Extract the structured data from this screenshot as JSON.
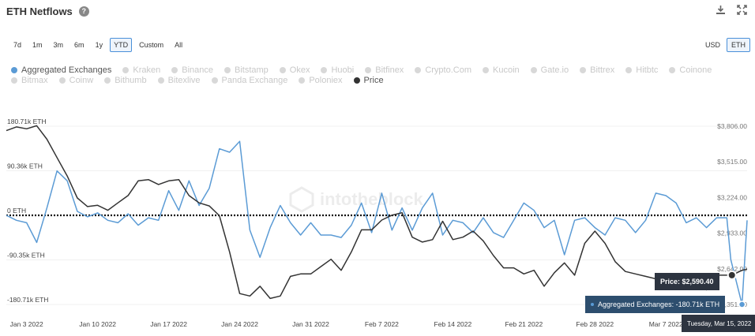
{
  "header": {
    "title": "ETH Netflows",
    "help_icon": "?"
  },
  "toolbar": {
    "icons": [
      "download-icon",
      "expand-icon"
    ],
    "ranges": [
      "7d",
      "1m",
      "3m",
      "6m",
      "1y",
      "YTD",
      "Custom",
      "All"
    ],
    "active_range": "YTD",
    "currencies": [
      "USD",
      "ETH"
    ],
    "active_currency": "ETH"
  },
  "legend": {
    "items": [
      {
        "label": "Aggregated Exchanges",
        "active": true,
        "color": "#5b9bd5"
      },
      {
        "label": "Kraken",
        "active": false
      },
      {
        "label": "Binance",
        "active": false
      },
      {
        "label": "Bitstamp",
        "active": false
      },
      {
        "label": "Okex",
        "active": false
      },
      {
        "label": "Huobi",
        "active": false
      },
      {
        "label": "Bitfinex",
        "active": false
      },
      {
        "label": "Crypto.Com",
        "active": false
      },
      {
        "label": "Kucoin",
        "active": false
      },
      {
        "label": "Gate.io",
        "active": false
      },
      {
        "label": "Bittrex",
        "active": false
      },
      {
        "label": "Hitbtc",
        "active": false
      },
      {
        "label": "Coinone",
        "active": false
      },
      {
        "label": "Bitmax",
        "active": false
      },
      {
        "label": "Coinw",
        "active": false
      },
      {
        "label": "Bithumb",
        "active": false
      },
      {
        "label": "Bitexlive",
        "active": false
      },
      {
        "label": "Panda Exchange",
        "active": false
      },
      {
        "label": "Poloniex",
        "active": false
      },
      {
        "label": "Price",
        "active": true,
        "color": "#333333"
      }
    ]
  },
  "tooltip": {
    "price": "Price: $2,590.40",
    "aggregated": "Aggregated Exchanges: -180.71k ETH",
    "date": "Tuesday, Mar 15, 2022"
  },
  "chart_data": {
    "type": "line",
    "colors": {
      "netflow": "#5b9bd5",
      "price": "#333333"
    },
    "y_left": {
      "unit": "ETH",
      "range": [
        -180.71,
        180.71
      ],
      "ticks": [
        180.71,
        90.36,
        0,
        -90.35,
        -180.71
      ],
      "tick_labels": [
        "180.71k ETH",
        "90.36k ETH",
        "0 ETH",
        "-90.35k ETH",
        "-180.71k ETH"
      ]
    },
    "y_right": {
      "unit": "USD",
      "range": [
        2351,
        3806
      ],
      "ticks": [
        3806,
        3515,
        3224,
        2933,
        2642,
        2351
      ],
      "tick_labels": [
        "$3,806.00",
        "$3,515.00",
        "$3,224.00",
        "$2,933.00",
        "$2,642.00",
        "$2,351.00"
      ]
    },
    "x_ticks": [
      "Jan 3 2022",
      "Jan 10 2022",
      "Jan 17 2022",
      "Jan 24 2022",
      "Jan 31 2022",
      "Feb 7 2022",
      "Feb 14 2022",
      "Feb 21 2022",
      "Feb 28 2022",
      "Mar 7 2022"
    ],
    "x_tick_days": [
      2,
      9,
      16,
      23,
      30,
      37,
      44,
      51,
      58,
      65
    ],
    "x_day_range": [
      0,
      73
    ],
    "series": [
      {
        "name": "Aggregated Exchanges",
        "axis": "left",
        "x_days": [
          0,
          1,
          2,
          3,
          4,
          5,
          6,
          7,
          8,
          9,
          10,
          11,
          12,
          13,
          14,
          15,
          16,
          17,
          18,
          19,
          20,
          21,
          22,
          23,
          24,
          25,
          26,
          27,
          28,
          29,
          30,
          31,
          32,
          33,
          34,
          35,
          36,
          37,
          38,
          39,
          40,
          41,
          42,
          43,
          44,
          45,
          46,
          47,
          48,
          49,
          50,
          51,
          52,
          53,
          54,
          55,
          56,
          57,
          58,
          59,
          60,
          61,
          62,
          63,
          64,
          65,
          66,
          67,
          68,
          69,
          70,
          71,
          71.4,
          72.5,
          73
        ],
        "values": [
          0,
          -10,
          -15,
          -55,
          15,
          90,
          70,
          8,
          -3,
          5,
          -10,
          -15,
          3,
          -20,
          -5,
          -10,
          50,
          10,
          70,
          20,
          55,
          135,
          128,
          150,
          -30,
          -85,
          -25,
          20,
          -15,
          -40,
          -15,
          -40,
          -40,
          -45,
          -20,
          25,
          -35,
          45,
          -30,
          15,
          -30,
          15,
          45,
          -40,
          -10,
          -15,
          -35,
          -5,
          -35,
          -45,
          -10,
          25,
          10,
          -25,
          -10,
          -80,
          -10,
          -5,
          -25,
          -40,
          -5,
          -10,
          -35,
          -10,
          45,
          40,
          25,
          -15,
          -5,
          -25,
          -5,
          -5,
          -90,
          -180.71,
          -10
        ]
      },
      {
        "name": "Price",
        "axis": "right",
        "x_days": [
          0,
          1,
          2,
          3,
          4,
          5,
          6,
          7,
          8,
          9,
          10,
          11,
          12,
          13,
          14,
          15,
          16,
          17,
          18,
          19,
          20,
          21,
          22,
          23,
          24,
          25,
          26,
          27,
          28,
          29,
          30,
          31,
          32,
          33,
          34,
          35,
          36,
          37,
          38,
          39,
          40,
          41,
          42,
          43,
          44,
          45,
          46,
          47,
          48,
          49,
          50,
          51,
          52,
          53,
          54,
          55,
          56,
          57,
          58,
          59,
          60,
          61,
          62,
          63,
          64,
          65,
          66,
          67,
          68,
          69,
          70,
          71.5,
          72.5,
          73
        ],
        "values": [
          3770,
          3800,
          3785,
          3810,
          3700,
          3550,
          3400,
          3220,
          3150,
          3160,
          3120,
          3180,
          3240,
          3360,
          3370,
          3330,
          3360,
          3370,
          3240,
          3180,
          3155,
          3075,
          2780,
          2440,
          2420,
          2500,
          2400,
          2420,
          2580,
          2600,
          2600,
          2660,
          2720,
          2630,
          2780,
          2960,
          2960,
          3040,
          3080,
          3100,
          2900,
          2860,
          2880,
          3030,
          2880,
          2900,
          2950,
          2870,
          2750,
          2650,
          2650,
          2600,
          2630,
          2500,
          2610,
          2690,
          2590,
          2850,
          2950,
          2850,
          2700,
          2620,
          2600,
          2580,
          2560,
          2580,
          2520,
          2550,
          2560,
          2470,
          2590,
          2590,
          2630,
          2640
        ]
      }
    ]
  }
}
